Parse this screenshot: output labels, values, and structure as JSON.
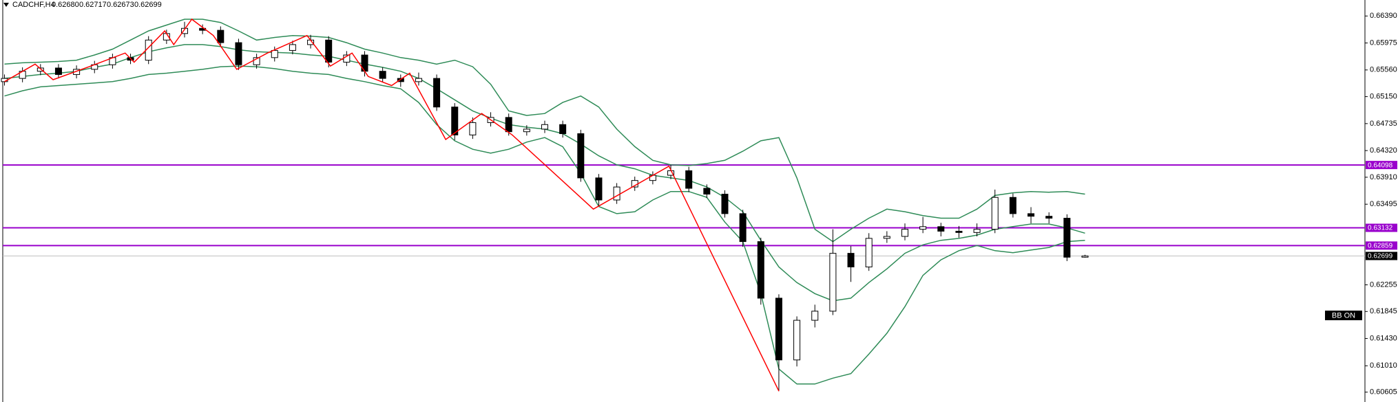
{
  "chart_data": {
    "type": "candlestick",
    "symbol": "CADCHF,H4",
    "header_values": [
      "0.62680",
      "0.62717",
      "0.62673",
      "0.62699"
    ],
    "open": [
      0.6538,
      0.6543,
      0.6554,
      0.6559,
      0.6549,
      0.6557,
      0.6564,
      0.6575,
      0.6571,
      0.6602,
      0.6612,
      0.662,
      0.6617,
      0.6598,
      0.6564,
      0.6575,
      0.6586,
      0.6595,
      0.6602,
      0.6568,
      0.6579,
      0.6554,
      0.6543,
      0.6538,
      0.6543,
      0.6499,
      0.6456,
      0.6475,
      0.6483,
      0.6461,
      0.6465,
      0.6472,
      0.6458,
      0.639,
      0.6356,
      0.6376,
      0.6386,
      0.6394,
      0.6401,
      0.6374,
      0.6365,
      0.6335,
      0.6292,
      0.6205,
      0.611,
      0.6171,
      0.6185,
      0.6274,
      0.6253,
      0.6297,
      0.63,
      0.6311,
      0.6315,
      0.6308,
      0.6306,
      0.6311,
      0.636,
      0.6335,
      0.6331,
      0.6328,
      0.6268
    ],
    "high": [
      0.6549,
      0.656,
      0.6565,
      0.6565,
      0.6563,
      0.657,
      0.6581,
      0.6581,
      0.6608,
      0.6618,
      0.663,
      0.6626,
      0.6623,
      0.6604,
      0.6581,
      0.6592,
      0.6601,
      0.661,
      0.6608,
      0.6585,
      0.6585,
      0.656,
      0.6549,
      0.6552,
      0.6549,
      0.6505,
      0.6483,
      0.6491,
      0.6489,
      0.6471,
      0.6478,
      0.6478,
      0.6464,
      0.6396,
      0.6382,
      0.6392,
      0.64,
      0.641,
      0.6407,
      0.638,
      0.6371,
      0.6341,
      0.6298,
      0.6211,
      0.6177,
      0.6195,
      0.6311,
      0.6285,
      0.6305,
      0.6308,
      0.632,
      0.633,
      0.6321,
      0.6316,
      0.632,
      0.6372,
      0.6366,
      0.6345,
      0.6337,
      0.6334,
      0.62717
    ],
    "low": [
      0.6532,
      0.6537,
      0.6548,
      0.6543,
      0.6543,
      0.6551,
      0.6558,
      0.6565,
      0.6565,
      0.6596,
      0.6606,
      0.6611,
      0.6592,
      0.6556,
      0.6558,
      0.6569,
      0.658,
      0.6589,
      0.656,
      0.6562,
      0.6546,
      0.6537,
      0.653,
      0.6532,
      0.6493,
      0.6448,
      0.645,
      0.6469,
      0.6455,
      0.6455,
      0.6459,
      0.6452,
      0.6384,
      0.6346,
      0.635,
      0.637,
      0.638,
      0.6388,
      0.6368,
      0.6359,
      0.6329,
      0.6284,
      0.6195,
      0.6062,
      0.61,
      0.616,
      0.6179,
      0.623,
      0.6247,
      0.629,
      0.6294,
      0.6305,
      0.63,
      0.6298,
      0.63,
      0.6305,
      0.6329,
      0.632,
      0.632,
      0.6262,
      0.62673
    ],
    "close": [
      0.6543,
      0.6554,
      0.6559,
      0.6549,
      0.6557,
      0.6564,
      0.6575,
      0.6571,
      0.6602,
      0.6612,
      0.662,
      0.6617,
      0.6598,
      0.6564,
      0.6575,
      0.6586,
      0.6595,
      0.6602,
      0.6568,
      0.6579,
      0.6554,
      0.6543,
      0.6538,
      0.6543,
      0.6499,
      0.6456,
      0.6475,
      0.6483,
      0.6461,
      0.6465,
      0.6472,
      0.6458,
      0.639,
      0.6356,
      0.6376,
      0.6386,
      0.6394,
      0.6401,
      0.6374,
      0.6365,
      0.6335,
      0.6292,
      0.6205,
      0.611,
      0.6171,
      0.6185,
      0.6274,
      0.6253,
      0.6297,
      0.63,
      0.6311,
      0.6315,
      0.6308,
      0.6306,
      0.6311,
      0.636,
      0.6335,
      0.6331,
      0.6328,
      0.6268,
      0.62699
    ],
    "colors": {
      "up": "#ffffff",
      "down": "#000000",
      "outline": "#000000"
    },
    "bands": {
      "color": "#2e8b57",
      "upper": [
        0.6565,
        0.6567,
        0.6568,
        0.6569,
        0.6571,
        0.6579,
        0.6588,
        0.6602,
        0.6616,
        0.6625,
        0.6634,
        0.6634,
        0.6629,
        0.6616,
        0.6602,
        0.6606,
        0.6609,
        0.6608,
        0.6606,
        0.6598,
        0.6588,
        0.6582,
        0.6575,
        0.6571,
        0.6565,
        0.6571,
        0.6561,
        0.6534,
        0.6493,
        0.6486,
        0.6489,
        0.6506,
        0.6516,
        0.6499,
        0.6465,
        0.6438,
        0.6417,
        0.641,
        0.6409,
        0.6412,
        0.6417,
        0.6431,
        0.6447,
        0.6452,
        0.639,
        0.6311,
        0.6292,
        0.6311,
        0.6328,
        0.6342,
        0.6338,
        0.6332,
        0.6328,
        0.6328,
        0.6342,
        0.6363,
        0.6367,
        0.6369,
        0.6368,
        0.6369,
        0.6365
      ],
      "middle": [
        0.6543,
        0.6546,
        0.6549,
        0.6551,
        0.6554,
        0.656,
        0.6565,
        0.6575,
        0.6584,
        0.659,
        0.6595,
        0.6595,
        0.6592,
        0.6587,
        0.6584,
        0.6583,
        0.6582,
        0.6579,
        0.6577,
        0.6571,
        0.6565,
        0.656,
        0.6554,
        0.6543,
        0.6527,
        0.651,
        0.6493,
        0.6482,
        0.6472,
        0.6468,
        0.6465,
        0.6458,
        0.6442,
        0.6424,
        0.641,
        0.6404,
        0.6394,
        0.639,
        0.6386,
        0.6376,
        0.636,
        0.6338,
        0.6294,
        0.6253,
        0.6229,
        0.6212,
        0.6201,
        0.6205,
        0.6229,
        0.625,
        0.6274,
        0.6287,
        0.6294,
        0.6297,
        0.6302,
        0.6311,
        0.6315,
        0.6319,
        0.6319,
        0.6313,
        0.6305
      ],
      "lower": [
        0.6516,
        0.6524,
        0.653,
        0.6532,
        0.6534,
        0.6536,
        0.6538,
        0.6543,
        0.6549,
        0.6551,
        0.6554,
        0.6557,
        0.6561,
        0.6562,
        0.6561,
        0.6558,
        0.6554,
        0.6551,
        0.6549,
        0.6543,
        0.6538,
        0.6532,
        0.6527,
        0.6506,
        0.6472,
        0.6447,
        0.6434,
        0.6428,
        0.6434,
        0.6445,
        0.6452,
        0.6438,
        0.6397,
        0.6346,
        0.6335,
        0.6338,
        0.6356,
        0.6369,
        0.6369,
        0.636,
        0.6322,
        0.6292,
        0.6212,
        0.6096,
        0.6073,
        0.6073,
        0.6082,
        0.6089,
        0.6119,
        0.6151,
        0.6192,
        0.624,
        0.6264,
        0.6278,
        0.6286,
        0.6278,
        0.6275,
        0.6279,
        0.6283,
        0.6292,
        0.6294
      ]
    },
    "zigzag": {
      "color": "#ff0000",
      "x": [
        0,
        1.7,
        2.7,
        4.7,
        6.7,
        7.2,
        8.9,
        9.4,
        10.4,
        11.6,
        12.9,
        14.6,
        16.8,
        18.1,
        19.3,
        20.2,
        21.5,
        22.5,
        24.5,
        26.5,
        28.2,
        32.7,
        36.9,
        43
      ],
      "values": [
        0.6538,
        0.6565,
        0.6541,
        0.6561,
        0.6582,
        0.6568,
        0.6616,
        0.6595,
        0.6634,
        0.6609,
        0.6557,
        0.6582,
        0.6609,
        0.6562,
        0.6582,
        0.6546,
        0.6532,
        0.6551,
        0.6449,
        0.6489,
        0.6456,
        0.6342,
        0.6408,
        0.6062
      ]
    },
    "levels": [
      {
        "value": 0.64098,
        "label": "0.64098"
      },
      {
        "value": 0.63132,
        "label": "0.63132"
      },
      {
        "value": 0.62859,
        "label": "0.62859"
      }
    ],
    "level_color": "#9900cc",
    "current": {
      "value": 0.62699,
      "label": "0.62699"
    },
    "ylim": [
      0.60453,
      0.66636
    ],
    "yticks": [
      {
        "value": 0.6639,
        "label": "0.66390"
      },
      {
        "value": 0.65975,
        "label": "0.65975"
      },
      {
        "value": 0.6556,
        "label": "0.65560"
      },
      {
        "value": 0.6515,
        "label": "0.65150"
      },
      {
        "value": 0.64735,
        "label": "0.64735"
      },
      {
        "value": 0.6432,
        "label": "0.64320"
      },
      {
        "value": 0.6391,
        "label": "0.63910"
      },
      {
        "value": 0.63495,
        "label": "0.63495"
      },
      {
        "value": 0.62255,
        "label": "0.62255"
      },
      {
        "value": 0.61845,
        "label": "0.61845"
      },
      {
        "value": 0.6143,
        "label": "0.61430"
      },
      {
        "value": 0.6101,
        "label": "0.61010"
      },
      {
        "value": 0.60605,
        "label": "0.60605"
      }
    ],
    "indicator_label": "BB ON"
  }
}
